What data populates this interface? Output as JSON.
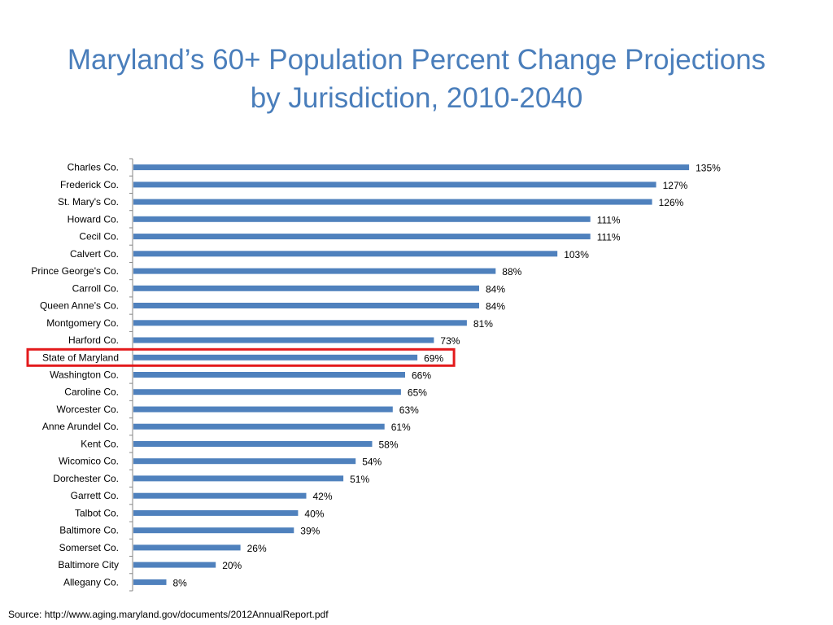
{
  "chart_data": {
    "type": "bar",
    "orientation": "horizontal",
    "title_lines": [
      "Maryland’s 60+ Population Percent Change Projections",
      "by Jurisdiction, 2010-2040"
    ],
    "categories": [
      "Charles Co.",
      "Frederick Co.",
      "St. Mary's Co.",
      "Howard Co.",
      "Cecil Co.",
      "Calvert Co.",
      "Prince George's Co.",
      "Carroll Co.",
      "Queen Anne's Co.",
      "Montgomery Co.",
      "Harford Co.",
      "State of Maryland",
      "Washington Co.",
      "Caroline Co.",
      "Worcester Co.",
      "Anne Arundel Co.",
      "Kent Co.",
      "Wicomico Co.",
      "Dorchester Co.",
      "Garrett Co.",
      "Talbot Co.",
      "Baltimore Co.",
      "Somerset Co.",
      "Baltimore City",
      "Allegany Co."
    ],
    "values": [
      135,
      127,
      126,
      111,
      111,
      103,
      88,
      84,
      84,
      81,
      73,
      69,
      66,
      65,
      63,
      61,
      58,
      54,
      51,
      42,
      40,
      39,
      26,
      20,
      8
    ],
    "data_labels": [
      "135%",
      "127%",
      "126%",
      "111%",
      "111%",
      "103%",
      "88%",
      "84%",
      "84%",
      "81%",
      "73%",
      "69%",
      "66%",
      "65%",
      "63%",
      "61%",
      "58%",
      "54%",
      "51%",
      "42%",
      "40%",
      "39%",
      "26%",
      "20%",
      "8%"
    ],
    "highlighted_category": "State of Maryland",
    "xlim": [
      0,
      135
    ],
    "grid": false,
    "legend": "none",
    "colors": {
      "bar": "#4f81bd",
      "highlight": "#e31a1c",
      "axis": "#868686",
      "title": "#4a7ebb"
    }
  },
  "source": "Source: http://www.aging.maryland.gov/documents/2012AnnualReport.pdf"
}
